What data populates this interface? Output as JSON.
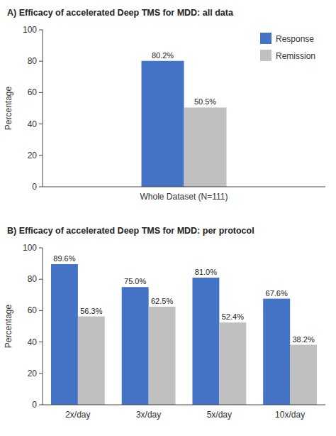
{
  "chart_data": [
    {
      "type": "bar",
      "title": "A) Efficacy of accelerated Deep TMS for MDD: all data",
      "y_label": "Percentage",
      "categories": [
        "Whole Dataset (N=111)"
      ],
      "series": [
        {
          "name": "Response",
          "color": "#4472C4",
          "values": [
            80.2
          ],
          "value_labels": [
            "80.2%"
          ]
        },
        {
          "name": "Remission",
          "color": "#C0C0C0",
          "values": [
            50.5
          ],
          "value_labels": [
            "50.5%"
          ]
        }
      ],
      "ylim": [
        0,
        100
      ],
      "yticks": [
        0,
        20,
        40,
        60,
        80,
        100
      ],
      "data_labels": true,
      "legend": "upper right",
      "grid": false
    },
    {
      "type": "bar",
      "title": "B) Efficacy of accelerated Deep TMS for MDD: per protocol",
      "y_label": "Percentage",
      "categories": [
        "2x/day",
        "3x/day",
        "5x/day",
        "10x/day"
      ],
      "series": [
        {
          "name": "Response",
          "color": "#4472C4",
          "values": [
            89.6,
            75.0,
            81.0,
            67.6
          ],
          "value_labels": [
            "89.6%",
            "75.0%",
            "81.0%",
            "67.6%"
          ]
        },
        {
          "name": "Remission",
          "color": "#C0C0C0",
          "values": [
            56.3,
            62.5,
            52.4,
            38.2
          ],
          "value_labels": [
            "56.3%",
            "62.5%",
            "52.4%",
            "38.2%"
          ]
        }
      ],
      "ylim": [
        0,
        100
      ],
      "yticks": [
        0,
        20,
        40,
        60,
        80,
        100
      ],
      "data_labels": true,
      "legend": false,
      "grid": false
    }
  ]
}
